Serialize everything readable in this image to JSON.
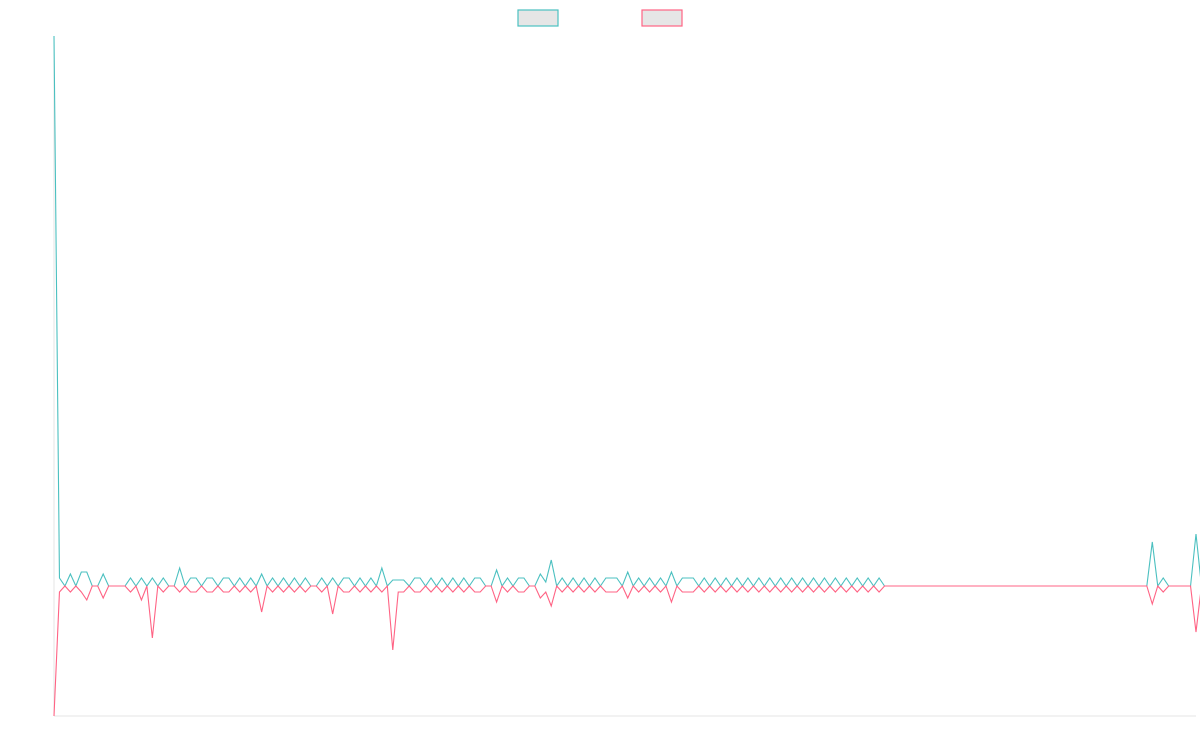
{
  "chart_data": {
    "type": "line",
    "title": "",
    "xlabel": "",
    "ylabel": "",
    "grid": false,
    "legend": "top-center",
    "x_range": [
      0,
      209
    ],
    "ylim": [
      -130,
      550
    ],
    "series": [
      {
        "color": "#4bc0c0",
        "legend_fill": "#e6e6e6",
        "values": [
          550,
          8,
          0,
          12,
          0,
          14,
          14,
          0,
          0,
          12,
          0,
          0,
          0,
          0,
          8,
          0,
          8,
          0,
          8,
          0,
          8,
          0,
          0,
          18,
          0,
          8,
          8,
          0,
          8,
          8,
          0,
          8,
          8,
          0,
          8,
          0,
          8,
          0,
          12,
          0,
          8,
          0,
          8,
          0,
          8,
          0,
          8,
          0,
          0,
          8,
          0,
          8,
          0,
          8,
          8,
          0,
          8,
          0,
          8,
          0,
          18,
          0,
          6,
          6,
          6,
          0,
          8,
          8,
          0,
          8,
          0,
          8,
          0,
          8,
          0,
          8,
          0,
          8,
          8,
          0,
          0,
          16,
          0,
          8,
          0,
          8,
          8,
          0,
          0,
          12,
          4,
          26,
          0,
          8,
          0,
          8,
          0,
          8,
          0,
          8,
          0,
          8,
          8,
          8,
          0,
          14,
          0,
          8,
          0,
          8,
          0,
          8,
          0,
          14,
          0,
          8,
          8,
          8,
          0,
          8,
          0,
          8,
          0,
          8,
          0,
          8,
          0,
          8,
          0,
          8,
          0,
          8,
          0,
          8,
          0,
          8,
          0,
          8,
          0,
          8,
          0,
          8,
          0,
          8,
          0,
          8,
          0,
          8,
          0,
          8,
          0,
          8,
          0,
          0,
          0,
          0,
          0,
          0,
          0,
          0,
          0,
          0,
          0,
          0,
          0,
          0,
          0,
          0,
          0,
          0,
          0,
          0,
          0,
          0,
          0,
          0,
          0,
          0,
          0,
          0,
          0,
          0,
          0,
          0,
          0,
          0,
          0,
          0,
          0,
          0,
          0,
          0,
          0,
          0,
          0,
          0,
          0,
          0,
          0,
          0,
          0,
          44,
          0,
          8,
          0,
          0,
          0,
          0,
          0,
          52,
          0
        ]
      },
      {
        "color": "#ff6384",
        "legend_fill": "#e6e6e6",
        "values": [
          -130,
          -6,
          0,
          -6,
          0,
          -6,
          -14,
          0,
          0,
          -12,
          0,
          0,
          0,
          0,
          -6,
          0,
          -14,
          0,
          -52,
          0,
          -6,
          0,
          0,
          -6,
          0,
          -6,
          -6,
          0,
          -6,
          -6,
          0,
          -6,
          -6,
          0,
          -6,
          0,
          -6,
          0,
          -26,
          0,
          -6,
          0,
          -6,
          0,
          -6,
          0,
          -6,
          0,
          0,
          -6,
          0,
          -28,
          0,
          -6,
          -6,
          0,
          -6,
          0,
          -6,
          0,
          -6,
          0,
          -64,
          -6,
          -6,
          0,
          -6,
          -6,
          0,
          -6,
          0,
          -6,
          0,
          -6,
          0,
          -6,
          0,
          -6,
          -6,
          0,
          0,
          -16,
          0,
          -6,
          0,
          -6,
          -6,
          0,
          0,
          -12,
          -6,
          -20,
          0,
          -6,
          0,
          -6,
          0,
          -6,
          0,
          -6,
          0,
          -6,
          -6,
          -6,
          0,
          -12,
          0,
          -6,
          0,
          -6,
          0,
          -6,
          0,
          -16,
          0,
          -6,
          -6,
          -6,
          0,
          -6,
          0,
          -6,
          0,
          -6,
          0,
          -6,
          0,
          -6,
          0,
          -6,
          0,
          -6,
          0,
          -6,
          0,
          -6,
          0,
          -6,
          0,
          -6,
          0,
          -6,
          0,
          -6,
          0,
          -6,
          0,
          -6,
          0,
          -6,
          0,
          -6,
          0,
          0,
          0,
          0,
          0,
          0,
          0,
          0,
          0,
          0,
          0,
          0,
          0,
          0,
          0,
          0,
          0,
          0,
          0,
          0,
          0,
          0,
          0,
          0,
          0,
          0,
          0,
          0,
          0,
          0,
          0,
          0,
          0,
          0,
          0,
          0,
          0,
          0,
          0,
          0,
          0,
          0,
          0,
          0,
          0,
          0,
          0,
          0,
          0,
          -18,
          0,
          -6,
          0,
          0,
          0,
          0,
          0,
          -46,
          0
        ]
      }
    ]
  }
}
